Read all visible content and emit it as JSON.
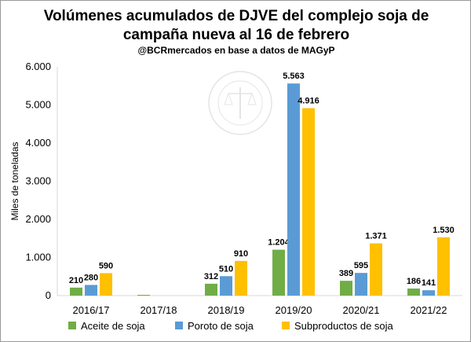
{
  "chart_data": {
    "type": "bar",
    "title_line1": "Volúmenes acumulados de DJVE del complejo soja de",
    "title_line2": "campaña nueva al 16 de febrero",
    "subtitle": "@BCRmercados en base a datos de MAGyP",
    "ylabel": "Miles de toneladas",
    "xlabel": "",
    "ylim": [
      0,
      6000
    ],
    "yticks": [
      0,
      1000,
      2000,
      3000,
      4000,
      5000,
      6000
    ],
    "ytick_labels": [
      "0",
      "1.000",
      "2.000",
      "3.000",
      "4.000",
      "5.000",
      "6.000"
    ],
    "grid": false,
    "legend_position": "bottom",
    "categories": [
      "2016/17",
      "2017/18",
      "2018/19",
      "2019/20",
      "2020/21",
      "2021/22"
    ],
    "series": [
      {
        "name": "Aceite de soja",
        "color": "#70ad47",
        "values": [
          210,
          20,
          312,
          1204,
          389,
          186
        ],
        "labels": [
          "210",
          "",
          "312",
          "1.204",
          "389",
          "186"
        ]
      },
      {
        "name": "Poroto de soja",
        "color": "#5b9bd5",
        "values": [
          280,
          0,
          510,
          5563,
          595,
          141
        ],
        "labels": [
          "280",
          "",
          "510",
          "5.563",
          "595",
          "141"
        ]
      },
      {
        "name": "Subproductos de soja",
        "color": "#ffc000",
        "values": [
          590,
          0,
          910,
          4916,
          1371,
          1530
        ],
        "labels": [
          "590",
          "",
          "910",
          "4.916",
          "1.371",
          "1.530"
        ]
      }
    ],
    "watermark": "BOLSA DE COMERCIO DE ROSARIO"
  }
}
